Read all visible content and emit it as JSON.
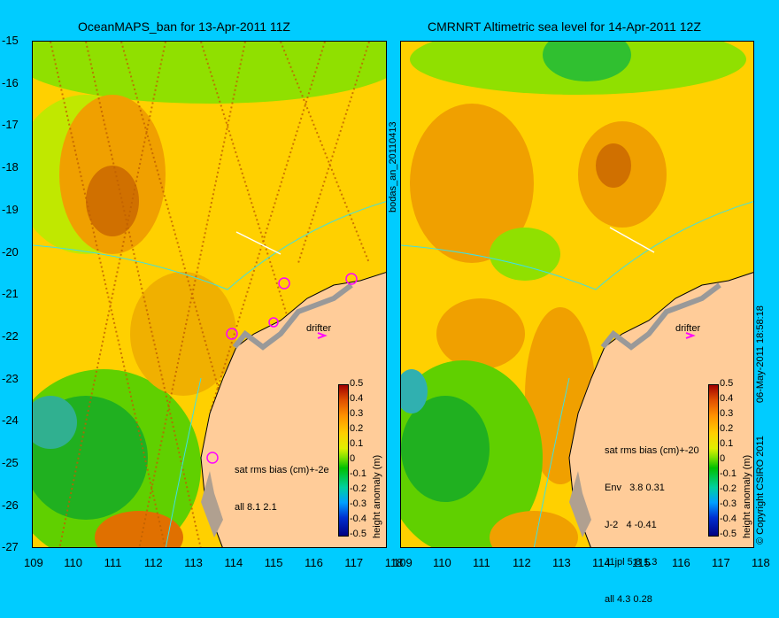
{
  "left_title": "OceanMAPS_ban for 13-Apr-2011 11Z",
  "right_title": "CMRNRT Altimetric sea level  for 14-Apr-2011 12Z",
  "y_ticks": [
    "-15",
    "-16",
    "-17",
    "-18",
    "-19",
    "-20",
    "-21",
    "-22",
    "-23",
    "-24",
    "-25",
    "-26",
    "-27"
  ],
  "left_x_ticks": [
    "109",
    "110",
    "111",
    "112",
    "113",
    "114",
    "115",
    "116",
    "117",
    "118"
  ],
  "right_x_ticks": [
    "109",
    "110",
    "111",
    "112",
    "113",
    "114",
    "115",
    "116",
    "117",
    "118"
  ],
  "left_vertical_label": "bodas_an_20110413",
  "right_vertical_label": "06-May-2011 18:58:18",
  "copyright": "© Copyright CSIRO 2011",
  "colorbar_label": "height anomaly (m)",
  "colorbar_ticks": [
    "0.5",
    "0.4",
    "0.3",
    "0.2",
    "0.1",
    "0",
    "-0.1",
    "-0.2",
    "-0.3",
    "-0.4",
    "-0.5"
  ],
  "drifter_label": "drifter",
  "left_stats": {
    "header": "sat rms bias (cm)+-2e",
    "rows": [
      "all 8.1 2.1"
    ]
  },
  "right_stats": {
    "header": "sat rms bias (cm)+-20",
    "rows": [
      "Env   3.8 0.31",
      "J-2   4 -0.41",
      "J1jpl 5.8 1.3",
      "all 4.3 0.28"
    ]
  },
  "colors": {
    "background": "#00ccff",
    "land": "#ffcc99",
    "ocean_base": "#ffd000",
    "positive_anomaly": "#e08000",
    "negative_anomaly": "#20c020",
    "coastline": "#40e0e0",
    "drifter_marker": "#ff00ff"
  }
}
